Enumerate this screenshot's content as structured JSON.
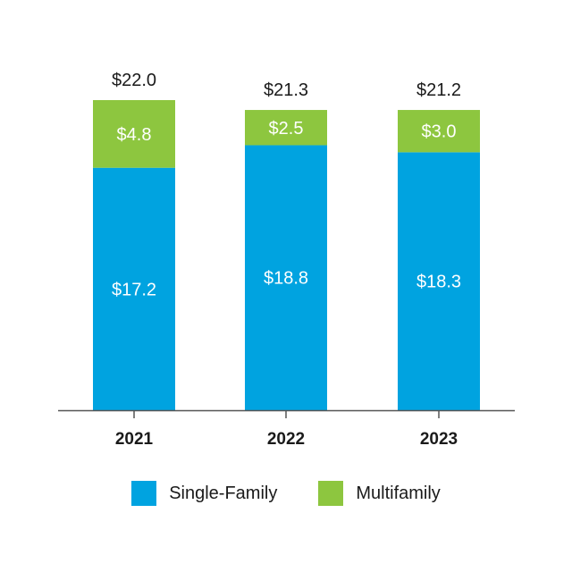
{
  "chart_data": {
    "type": "bar",
    "stacked": true,
    "categories": [
      "2021",
      "2022",
      "2023"
    ],
    "series": [
      {
        "name": "Single-Family",
        "color": "#00a3e0",
        "values": [
          17.2,
          18.8,
          18.3
        ],
        "labels": [
          "$17.2",
          "$18.8",
          "$18.3"
        ]
      },
      {
        "name": "Multifamily",
        "color": "#8dc63f",
        "values": [
          4.8,
          2.5,
          3.0
        ],
        "labels": [
          "$4.8",
          "$2.5",
          "$3.0"
        ]
      }
    ],
    "totals": [
      22.0,
      21.3,
      21.2
    ],
    "total_labels": [
      "$22.0",
      "$21.3",
      "$21.2"
    ],
    "ylim": [
      0,
      22.0
    ],
    "grid": false,
    "legend_position": "bottom"
  }
}
